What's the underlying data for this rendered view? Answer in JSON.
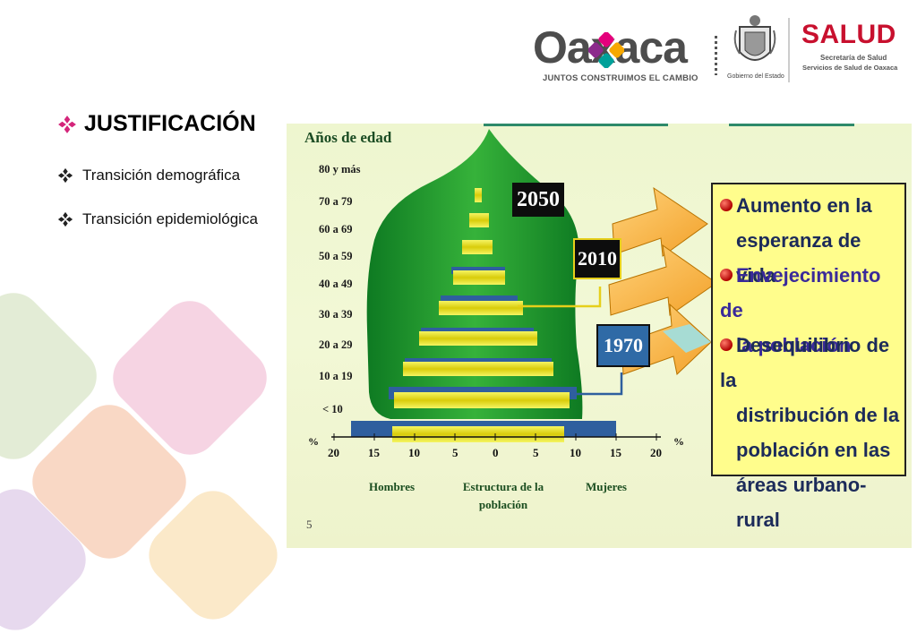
{
  "header": {
    "brand_name": "Oaxaca",
    "brand_slogan": "JUNTOS CONSTRUIMOS EL CAMBIO",
    "gobierno_label": "Gobierno del Estado",
    "salud_title": "SALUD",
    "salud_line1": "Secretaría de Salud",
    "salud_line2": "Servicios de Salud de Oaxaca",
    "salud_color": "#c8102e"
  },
  "slide": {
    "title": "JUSTIFICACIÓN",
    "bullets": [
      "Transición demográfica",
      "Transición epidemiológica"
    ],
    "bullet_icon": "diamond-cluster-icon",
    "accent": "#d4257a"
  },
  "figure": {
    "y_title": "Años de edad",
    "age_groups": [
      "80 y más",
      "70 a 79",
      "60 a 69",
      "50 a 59",
      "40 a 49",
      "30 a 39",
      "20 a 29",
      "10 a 19",
      "< 10"
    ],
    "percent_symbol_left": "%",
    "percent_symbol_right": "%",
    "ticks": [
      "20",
      "15",
      "10",
      "5",
      "0",
      "5",
      "10",
      "15",
      "20"
    ],
    "hombres": "Hombres",
    "estructura_line1": "Estructura de la",
    "estructura_line2": "población",
    "mujeres": "Mujeres",
    "year_2050": "2050",
    "year_2010": "2010",
    "year_1970": "1970",
    "page_number": "5",
    "info_items": [
      {
        "lines": [
          "Aumento en la",
          "esperanza de vida"
        ],
        "color": "#1c2b5a"
      },
      {
        "lines": [
          "Envejecimiento de",
          "la población"
        ],
        "color": "#3a2a9a"
      },
      {
        "lines": [
          "Desequilibrio de la",
          "distribución de la",
          "población en las",
          "áreas urbano-rural"
        ],
        "color": "#1c2b5a"
      }
    ]
  }
}
